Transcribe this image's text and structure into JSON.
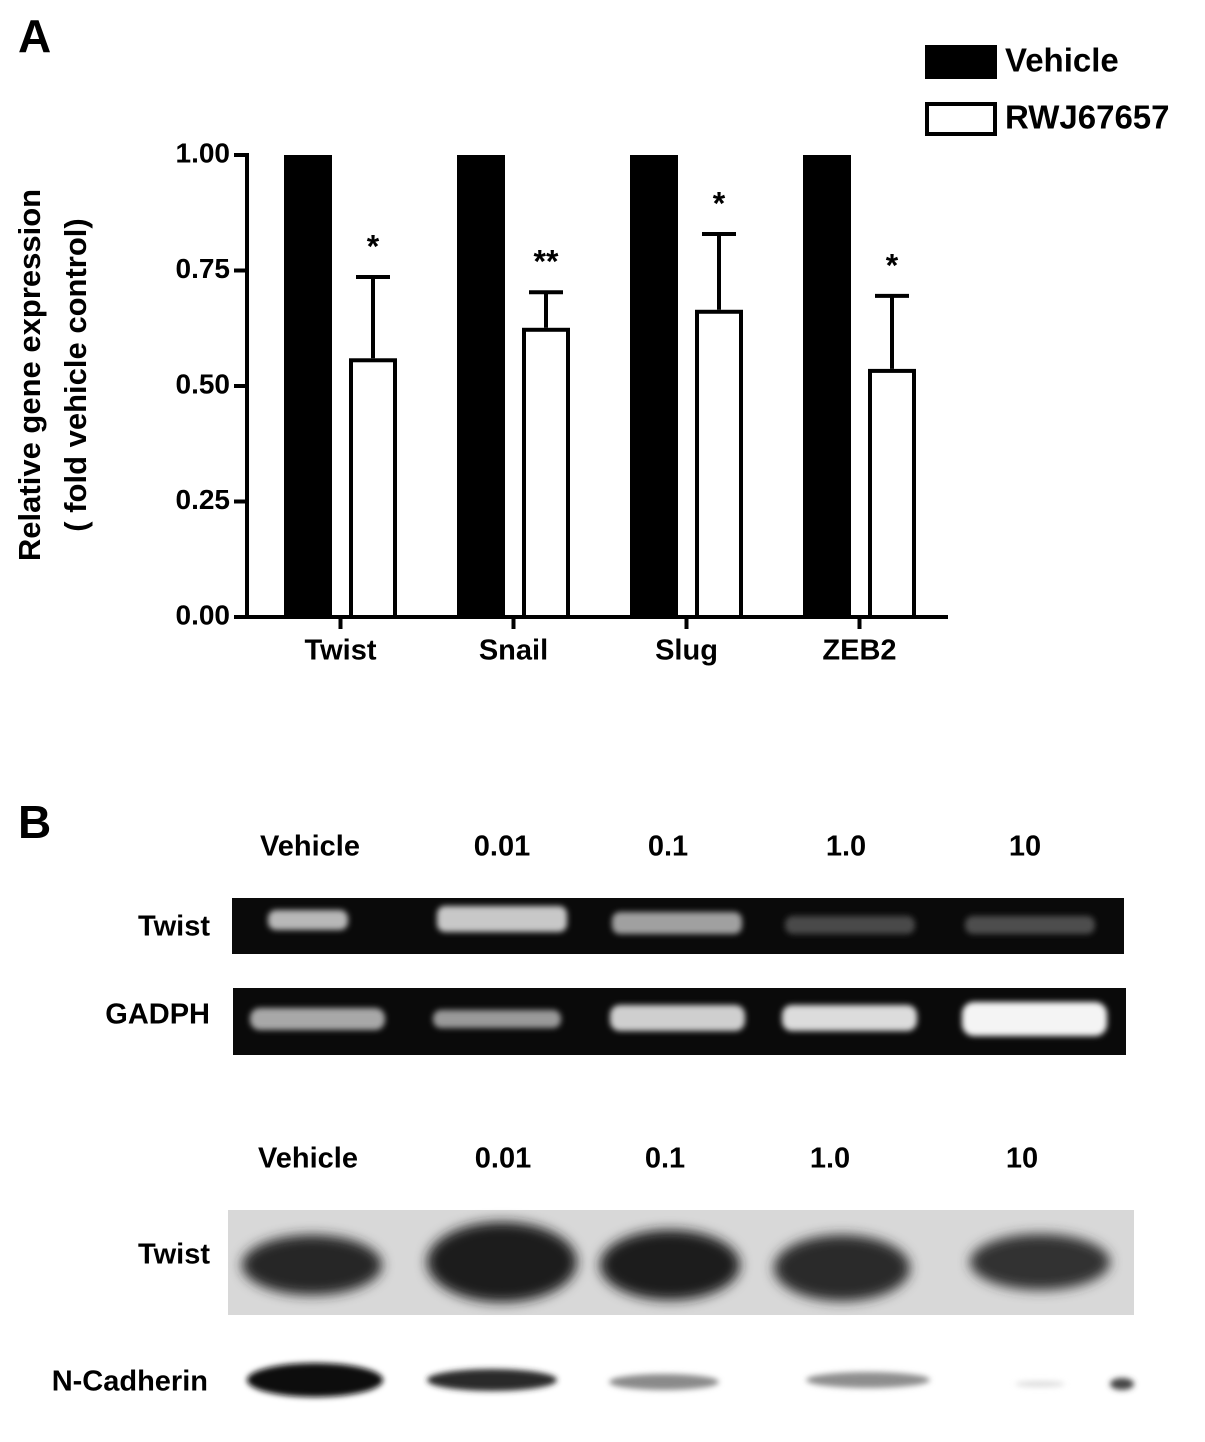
{
  "panel_labels": [
    "A",
    "B"
  ],
  "chart_data": {
    "type": "bar",
    "ylabel": [
      "Relative gene expression",
      "( fold vehicle control)"
    ],
    "categories": [
      "Twist",
      "Snail",
      "Slug",
      "ZEB2"
    ],
    "series": [
      {
        "name": "Vehicle",
        "color": "#000000",
        "values": [
          1.0,
          1.0,
          1.0,
          1.0
        ]
      },
      {
        "name": "RWJ67657",
        "color": "#ffffff",
        "values": [
          0.56,
          0.626,
          0.665,
          0.537
        ],
        "errors": [
          0.176,
          0.077,
          0.164,
          0.158
        ]
      }
    ],
    "annotations": [
      "*",
      "**",
      "*",
      "*"
    ],
    "ylim": [
      0,
      1
    ],
    "yticks": [
      {
        "value": 0,
        "label": "0.00"
      },
      {
        "value": 0.25,
        "label": "0.25"
      },
      {
        "value": 0.5,
        "label": "0.50"
      },
      {
        "value": 0.75,
        "label": "0.75"
      },
      {
        "value": 1,
        "label": "1.00"
      }
    ],
    "legend": "top-right"
  },
  "rt_pcr": {
    "lanes": [
      "Vehicle",
      "0.01",
      "0.1",
      "1.0",
      "10"
    ],
    "rows": [
      "Twist",
      "GADPH"
    ]
  },
  "western": {
    "lanes": [
      "Vehicle",
      "0.01",
      "0.1",
      "1.0",
      "10"
    ],
    "rows": [
      "Twist",
      "N-Cadherin"
    ]
  }
}
